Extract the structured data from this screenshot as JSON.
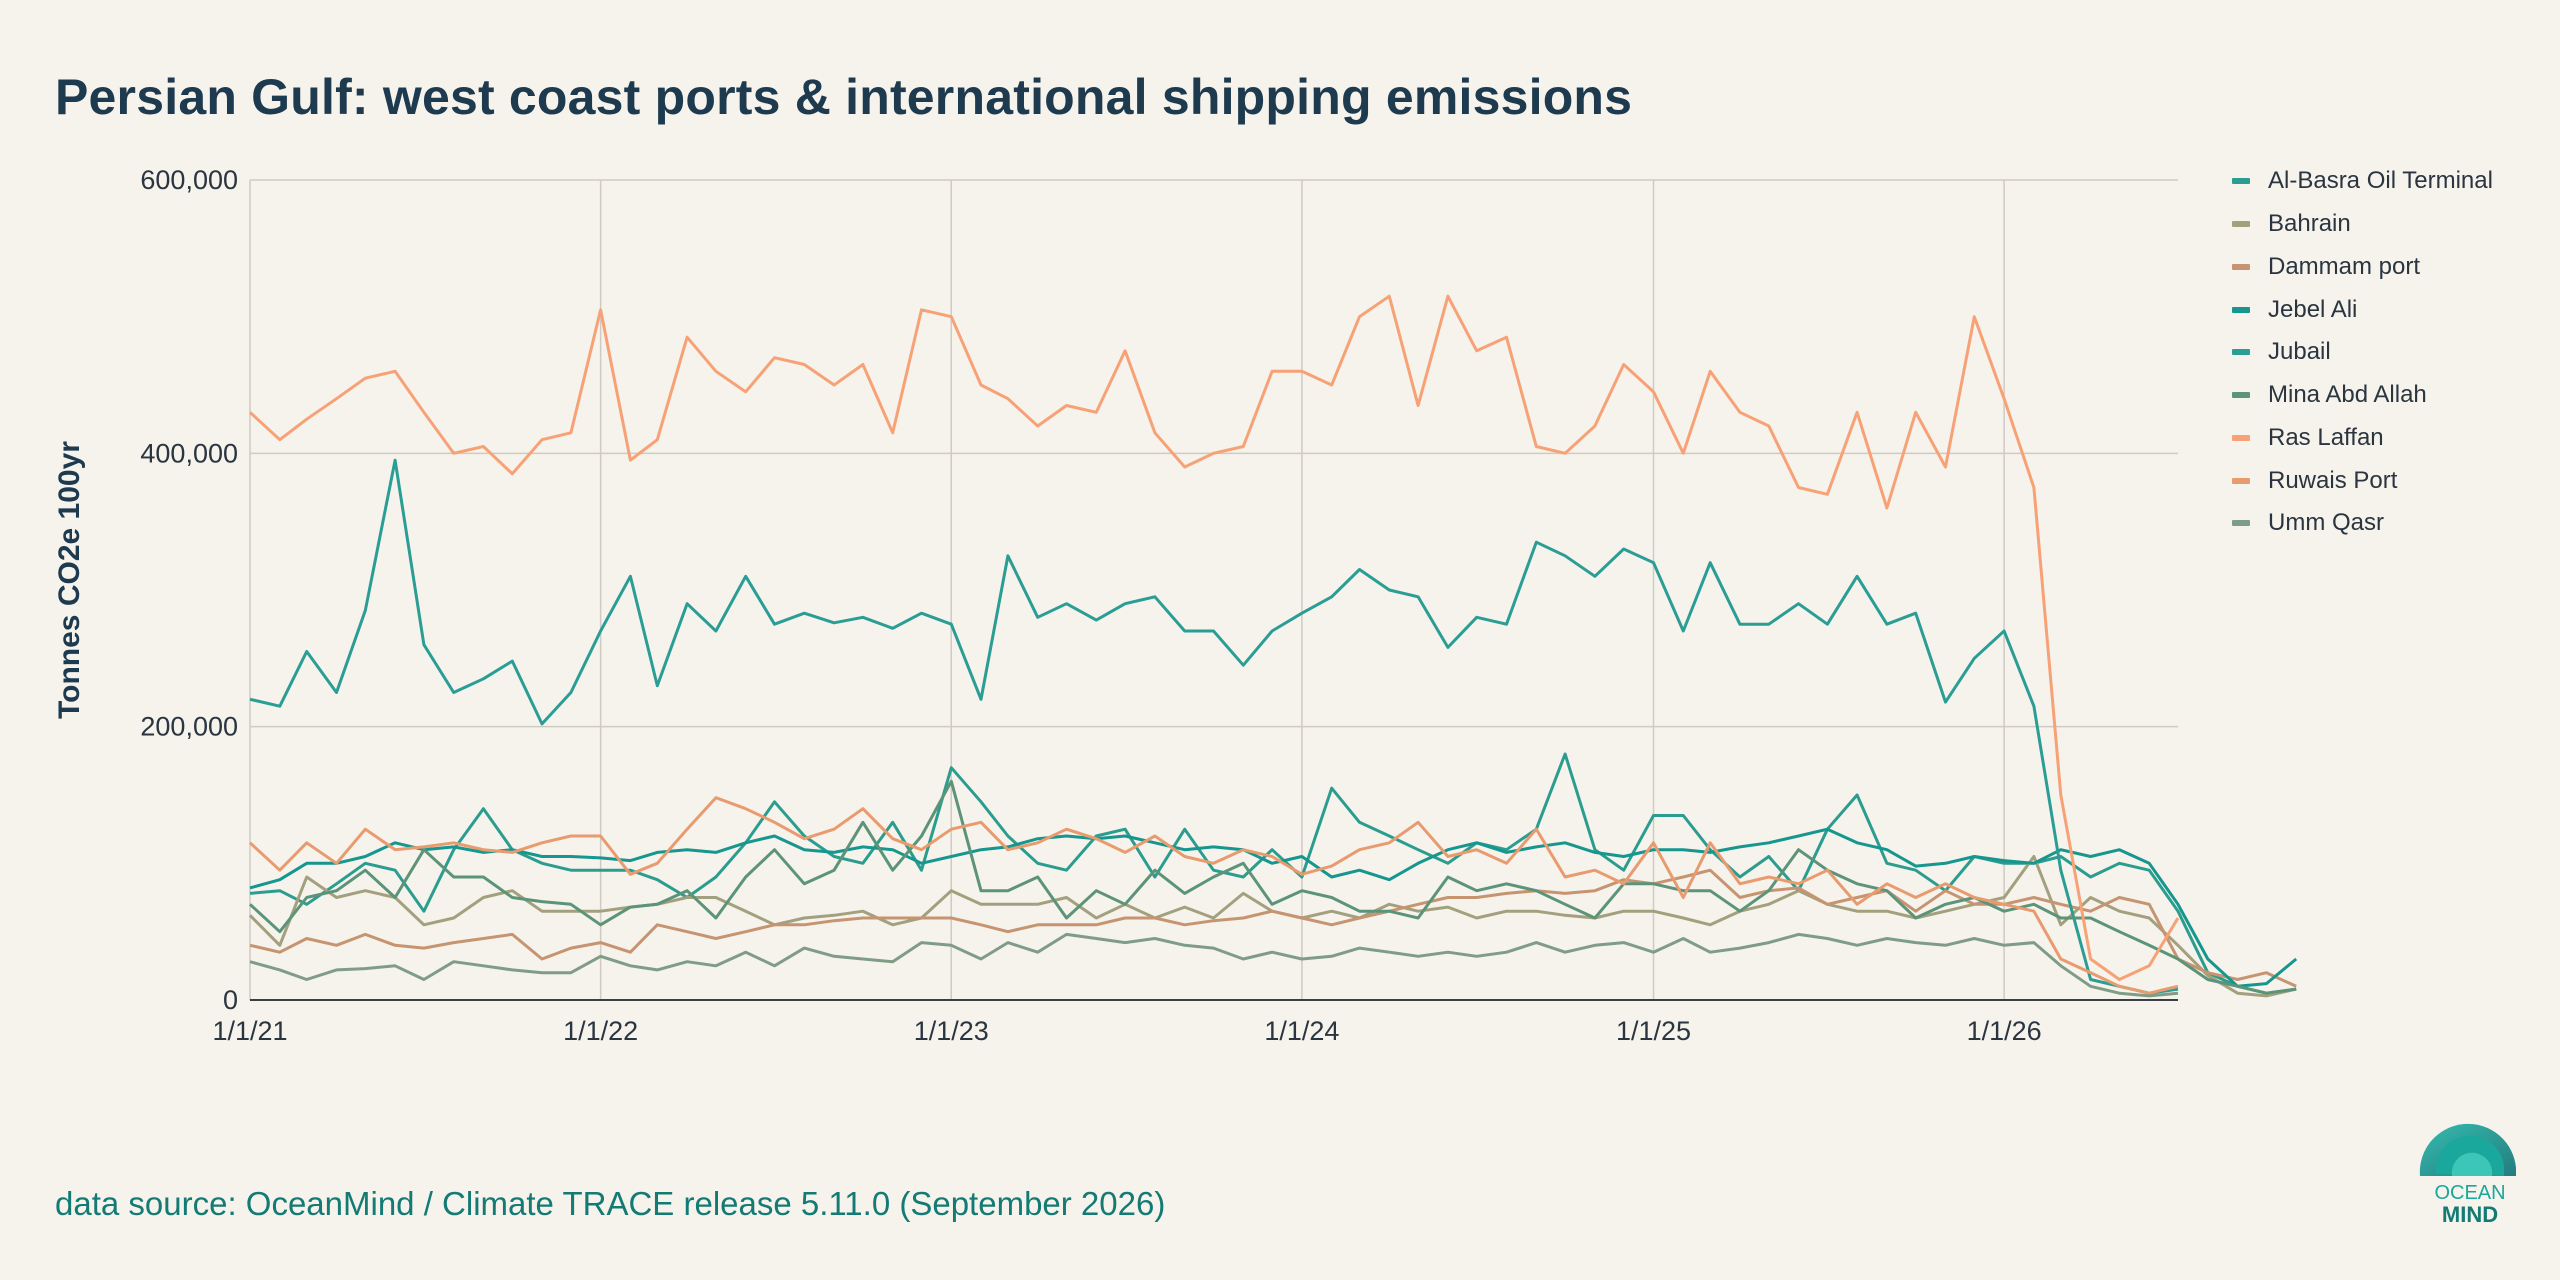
{
  "title": "Persian Gulf: west coast ports & international shipping emissions",
  "source": "data source: OceanMind / Climate TRACE release 5.11.0 (September 2026)",
  "logo": {
    "line1": "OCEAN",
    "line2": "MIND"
  },
  "colors": {
    "background": "#f6f2ec",
    "grid": "#cfcac3",
    "title": "#1d3a4f",
    "source": "#137a74"
  },
  "chart_data": {
    "type": "line",
    "ylabel": "Tonnes CO2e 100yr",
    "xlabel": "",
    "xlim": [
      "2021-01-01",
      "2026-07-01"
    ],
    "ylim": [
      0,
      600000
    ],
    "y_ticks": [
      0,
      200000,
      400000,
      600000
    ],
    "y_tick_labels": [
      "0",
      "200,000",
      "400,000",
      "600,000"
    ],
    "x_ticks": [
      "2021-01-01",
      "2022-01-01",
      "2023-01-01",
      "2024-01-01",
      "2025-01-01",
      "2026-01-01"
    ],
    "x_tick_labels": [
      "1/1/21",
      "1/1/22",
      "1/1/23",
      "1/1/24",
      "1/1/25",
      "1/1/26"
    ],
    "grid": true,
    "legend": "right",
    "x_start": "2021-01",
    "x_step": "month",
    "series": [
      {
        "name": "Al-Basra Oil Terminal",
        "color": "#2a9d8f",
        "values": [
          78000,
          80000,
          70000,
          85000,
          100000,
          95000,
          65000,
          110000,
          140000,
          110000,
          100000,
          95000,
          95000,
          95000,
          88000,
          75000,
          90000,
          115000,
          145000,
          120000,
          105000,
          100000,
          130000,
          95000,
          170000,
          145000,
          120000,
          100000,
          95000,
          120000,
          125000,
          90000,
          125000,
          95000,
          90000,
          110000,
          90000,
          155000,
          130000,
          120000,
          110000,
          100000,
          115000,
          110000,
          125000,
          180000,
          110000,
          95000,
          135000,
          135000,
          110000,
          90000,
          105000,
          80000,
          125000,
          150000,
          100000,
          95000,
          80000,
          105000,
          100000,
          100000,
          105000,
          90000,
          100000,
          95000,
          65000,
          20000,
          10000,
          5000,
          8000
        ]
      },
      {
        "name": "Bahrain",
        "color": "#a3a07e",
        "values": [
          62000,
          40000,
          90000,
          75000,
          80000,
          75000,
          55000,
          60000,
          75000,
          80000,
          65000,
          65000,
          65000,
          68000,
          70000,
          75000,
          75000,
          65000,
          55000,
          60000,
          62000,
          65000,
          55000,
          60000,
          80000,
          70000,
          70000,
          70000,
          75000,
          60000,
          70000,
          60000,
          68000,
          60000,
          78000,
          65000,
          60000,
          65000,
          60000,
          70000,
          65000,
          68000,
          60000,
          65000,
          65000,
          62000,
          60000,
          65000,
          65000,
          60000,
          55000,
          65000,
          70000,
          80000,
          70000,
          65000,
          65000,
          60000,
          65000,
          70000,
          75000,
          105000,
          55000,
          75000,
          65000,
          60000,
          40000,
          18000,
          5000,
          3000,
          8000
        ]
      },
      {
        "name": "Dammam port",
        "color": "#c69470",
        "values": [
          40000,
          35000,
          45000,
          40000,
          48000,
          40000,
          38000,
          42000,
          45000,
          48000,
          30000,
          38000,
          42000,
          35000,
          55000,
          50000,
          45000,
          50000,
          55000,
          55000,
          58000,
          60000,
          60000,
          60000,
          60000,
          55000,
          50000,
          55000,
          55000,
          55000,
          60000,
          60000,
          55000,
          58000,
          60000,
          65000,
          60000,
          55000,
          60000,
          65000,
          70000,
          75000,
          75000,
          78000,
          80000,
          78000,
          80000,
          88000,
          85000,
          90000,
          95000,
          75000,
          80000,
          82000,
          70000,
          75000,
          80000,
          65000,
          80000,
          70000,
          70000,
          75000,
          70000,
          65000,
          75000,
          70000,
          30000,
          20000,
          15000,
          20000,
          10000
        ]
      },
      {
        "name": "Jebel Ali",
        "color": "#15968e",
        "values": [
          82000,
          88000,
          100000,
          100000,
          105000,
          115000,
          110000,
          112000,
          108000,
          110000,
          105000,
          105000,
          104000,
          102000,
          108000,
          110000,
          108000,
          115000,
          120000,
          110000,
          108000,
          112000,
          110000,
          100000,
          105000,
          110000,
          112000,
          118000,
          120000,
          118000,
          120000,
          115000,
          110000,
          112000,
          110000,
          100000,
          105000,
          90000,
          95000,
          88000,
          100000,
          110000,
          115000,
          108000,
          112000,
          115000,
          108000,
          105000,
          110000,
          110000,
          108000,
          112000,
          115000,
          120000,
          125000,
          115000,
          110000,
          98000,
          100000,
          105000,
          102000,
          100000,
          110000,
          105000,
          110000,
          100000,
          70000,
          30000,
          10000,
          12000,
          30000
        ]
      },
      {
        "name": "Jubail",
        "color": "#2a9d94",
        "values": [
          220000,
          215000,
          255000,
          225000,
          285000,
          395000,
          260000,
          225000,
          235000,
          248000,
          202000,
          225000,
          270000,
          310000,
          230000,
          290000,
          270000,
          310000,
          275000,
          283000,
          276000,
          280000,
          272000,
          283000,
          275000,
          220000,
          325000,
          280000,
          290000,
          278000,
          290000,
          295000,
          270000,
          270000,
          245000,
          270000,
          283000,
          295000,
          315000,
          300000,
          295000,
          258000,
          280000,
          275000,
          335000,
          325000,
          310000,
          330000,
          320000,
          270000,
          320000,
          275000,
          275000,
          290000,
          275000,
          310000,
          275000,
          283000,
          218000,
          250000,
          270000,
          215000,
          95000,
          15000,
          10000,
          5000,
          8000
        ]
      },
      {
        "name": "Mina Abd Allah",
        "color": "#5b9478",
        "values": [
          70000,
          50000,
          75000,
          80000,
          95000,
          75000,
          110000,
          90000,
          90000,
          75000,
          72000,
          70000,
          55000,
          68000,
          70000,
          80000,
          60000,
          90000,
          110000,
          85000,
          95000,
          130000,
          95000,
          120000,
          160000,
          80000,
          80000,
          90000,
          60000,
          80000,
          70000,
          95000,
          78000,
          90000,
          100000,
          70000,
          80000,
          75000,
          65000,
          65000,
          60000,
          90000,
          80000,
          85000,
          80000,
          70000,
          60000,
          85000,
          85000,
          80000,
          80000,
          65000,
          80000,
          110000,
          95000,
          85000,
          80000,
          60000,
          70000,
          75000,
          65000,
          70000,
          60000,
          60000,
          50000,
          40000,
          30000,
          15000,
          10000,
          5000,
          8000
        ]
      },
      {
        "name": "Ras Laffan",
        "color": "#f7a276",
        "values": [
          430000,
          410000,
          425000,
          440000,
          455000,
          460000,
          430000,
          400000,
          405000,
          385000,
          410000,
          415000,
          505000,
          395000,
          410000,
          485000,
          460000,
          445000,
          470000,
          465000,
          450000,
          465000,
          415000,
          505000,
          500000,
          450000,
          440000,
          420000,
          435000,
          430000,
          475000,
          415000,
          390000,
          400000,
          405000,
          460000,
          460000,
          450000,
          500000,
          515000,
          435000,
          515000,
          475000,
          485000,
          405000,
          400000,
          420000,
          465000,
          445000,
          400000,
          460000,
          430000,
          420000,
          375000,
          370000,
          430000,
          360000,
          430000,
          390000,
          500000,
          440000,
          375000,
          150000,
          30000,
          15000,
          25000,
          60000
        ]
      },
      {
        "name": "Ruwais Port",
        "color": "#e89b6e",
        "values": [
          115000,
          95000,
          115000,
          100000,
          125000,
          110000,
          112000,
          115000,
          110000,
          108000,
          115000,
          120000,
          120000,
          92000,
          100000,
          125000,
          148000,
          140000,
          130000,
          118000,
          125000,
          140000,
          118000,
          110000,
          125000,
          130000,
          110000,
          115000,
          125000,
          118000,
          108000,
          120000,
          105000,
          100000,
          110000,
          105000,
          92000,
          98000,
          110000,
          115000,
          130000,
          105000,
          110000,
          100000,
          125000,
          90000,
          95000,
          85000,
          115000,
          75000,
          115000,
          85000,
          90000,
          85000,
          95000,
          70000,
          85000,
          75000,
          85000,
          75000,
          70000,
          65000,
          30000,
          20000,
          10000,
          5000,
          10000
        ]
      },
      {
        "name": "Umm Qasr",
        "color": "#7f9c87",
        "values": [
          28000,
          22000,
          15000,
          22000,
          23000,
          25000,
          15000,
          28000,
          25000,
          22000,
          20000,
          20000,
          32000,
          25000,
          22000,
          28000,
          25000,
          35000,
          25000,
          38000,
          32000,
          30000,
          28000,
          42000,
          40000,
          30000,
          42000,
          35000,
          48000,
          45000,
          42000,
          45000,
          40000,
          38000,
          30000,
          35000,
          30000,
          32000,
          38000,
          35000,
          32000,
          35000,
          32000,
          35000,
          42000,
          35000,
          40000,
          42000,
          35000,
          45000,
          35000,
          38000,
          42000,
          48000,
          45000,
          40000,
          45000,
          42000,
          40000,
          45000,
          40000,
          42000,
          25000,
          10000,
          5000,
          3000,
          5000
        ]
      }
    ]
  }
}
